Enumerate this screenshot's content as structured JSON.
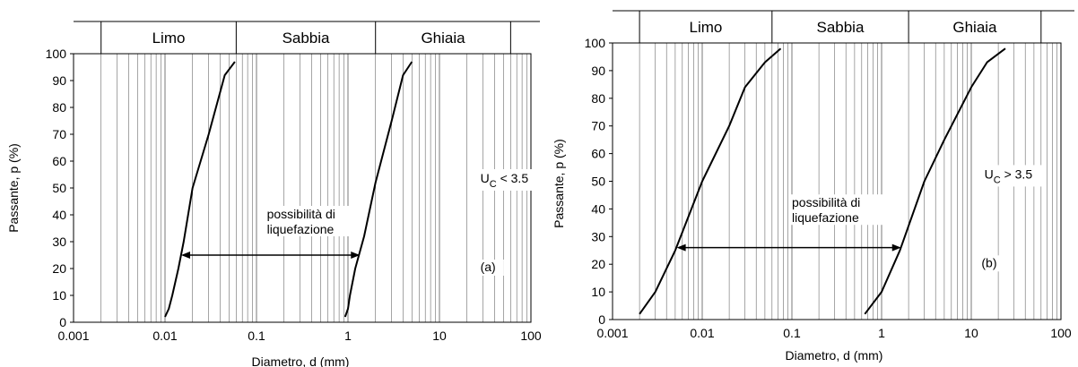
{
  "chart_data": [
    {
      "id": "a",
      "type": "line",
      "xscale": "log",
      "xlim": [
        0.001,
        100
      ],
      "ylim": [
        0,
        100
      ],
      "xticks": [
        0.001,
        0.01,
        0.1,
        1,
        10,
        100
      ],
      "xtick_labels": [
        "0.001",
        "0.01",
        "0.1",
        "1",
        "10",
        "100"
      ],
      "yticks": [
        0,
        10,
        20,
        30,
        40,
        50,
        60,
        70,
        80,
        90,
        100
      ],
      "xlabel": "Diametro, d (mm)",
      "ylabel": "Passante, p (%)",
      "grid": true,
      "bands": [
        {
          "label": "Limo",
          "from": 0.002,
          "to": 0.06
        },
        {
          "label": "Sabbia",
          "from": 0.06,
          "to": 2
        },
        {
          "label": "Ghiaia",
          "from": 2,
          "to": 60
        }
      ],
      "series": [
        {
          "x": [
            0.01,
            0.011,
            0.012,
            0.014,
            0.016,
            0.02,
            0.03,
            0.045,
            0.058
          ],
          "y": [
            2,
            5,
            10,
            20,
            30,
            50,
            70,
            92,
            97
          ]
        },
        {
          "x": [
            0.93,
            1.0,
            1.05,
            1.2,
            1.5,
            2.0,
            3.0,
            4.0,
            5.0
          ],
          "y": [
            2,
            5,
            10,
            20,
            32,
            52,
            75,
            92,
            97
          ]
        }
      ],
      "range_arrow": {
        "x1": 0.015,
        "x2": 1.35,
        "y": 25
      },
      "label_range": [
        "possibilità di",
        "liquefazione"
      ],
      "label_uc": {
        "main": "U",
        "sub": "C",
        "rest": " < 3.5"
      },
      "label_panel": "(a)"
    },
    {
      "id": "b",
      "type": "line",
      "xscale": "log",
      "xlim": [
        0.001,
        100
      ],
      "ylim": [
        0,
        100
      ],
      "xticks": [
        0.001,
        0.01,
        0.1,
        1,
        10,
        100
      ],
      "xtick_labels": [
        "0.001",
        "0.01",
        "0.1",
        "1",
        "10",
        "100"
      ],
      "yticks": [
        0,
        10,
        20,
        30,
        40,
        50,
        60,
        70,
        80,
        90,
        100
      ],
      "xlabel": "Diametro, d (mm)",
      "ylabel": "Passante, p (%)",
      "grid": true,
      "bands": [
        {
          "label": "Limo",
          "from": 0.002,
          "to": 0.06
        },
        {
          "label": "Sabbia",
          "from": 0.06,
          "to": 2
        },
        {
          "label": "Ghiaia",
          "from": 2,
          "to": 60
        }
      ],
      "series": [
        {
          "x": [
            0.002,
            0.003,
            0.005,
            0.01,
            0.02,
            0.03,
            0.05,
            0.075
          ],
          "y": [
            2,
            10,
            25,
            50,
            70,
            84,
            93,
            98
          ]
        },
        {
          "x": [
            0.65,
            1.0,
            1.6,
            3.0,
            5.0,
            10.0,
            15.0,
            24.0
          ],
          "y": [
            2,
            10,
            25,
            50,
            65,
            84,
            93,
            98
          ]
        }
      ],
      "range_arrow": {
        "x1": 0.0052,
        "x2": 1.65,
        "y": 26
      },
      "label_range": [
        "possibilità di",
        "liquefazione"
      ],
      "label_uc": {
        "main": "U",
        "sub": "C",
        "rest": " > 3.5"
      },
      "label_panel": "(b)"
    }
  ]
}
